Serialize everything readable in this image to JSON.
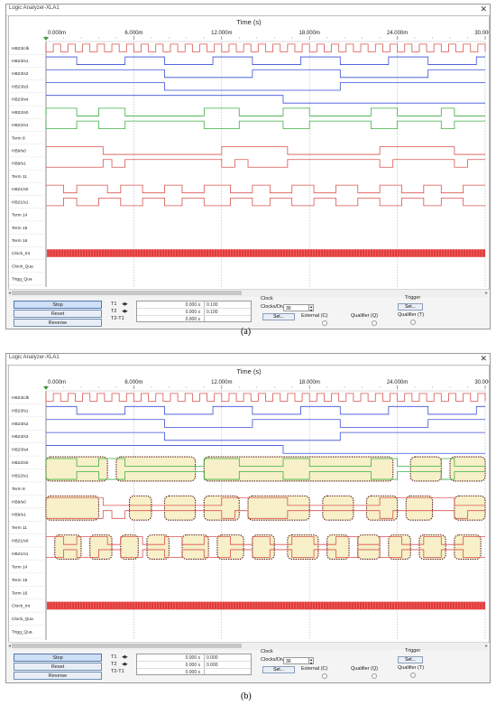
{
  "window_title": "Logic Analyzer-XLA1",
  "close_glyph": "✕",
  "axis": {
    "title": "Time (s)",
    "ticks": [
      "0.000m",
      "6.000m",
      "12.000m",
      "18.000m",
      "24.000m",
      "30.000m"
    ]
  },
  "channels": [
    "HB23/clk",
    "HB23/s1",
    "HB23/s2",
    "HB23/s3",
    "HB23/s4",
    "HB22/s0",
    "HB22/s1",
    "Term 8",
    "HB9/s0",
    "HB9/s1",
    "Term 11",
    "HB21/s0",
    "HB21/s1",
    "Term 14",
    "Term 15",
    "Term 16",
    "Clock_Int",
    "Clock_Qua",
    "Trigg_Qua"
  ],
  "colors": {
    "clk": "#d9534f",
    "blue": "#3b4fd6",
    "green": "#3cb043",
    "red": "#d9534f",
    "highlight_fill": "#f7f0c9",
    "highlight_border": "#5a1a1a",
    "clockint": "#e23a3a"
  },
  "controls": {
    "stop": "Stop",
    "reset": "Reset",
    "reverse": "Reverse",
    "t1": "T1",
    "t2": "T2",
    "t2t1": "T2-T1",
    "cursor_arrows": "◀▶",
    "a": {
      "t1_time": "0.000 s",
      "t2_time": "0.000 s",
      "t2t1_time": "0.000 s",
      "t1_val": "0.100",
      "t2_val": "0.100"
    },
    "b": {
      "t1_time": "0.000 s",
      "t2_time": "0.000 s",
      "t2t1_time": "0.000 s",
      "t1_val": "0.000",
      "t2_val": "0.000"
    },
    "clock": "Clock",
    "clocks_div": "Clocks/Div",
    "clocks_div_value": "30",
    "set": "Set...",
    "external": "External (C)",
    "qualifier_q": "Qualifier (Q)",
    "trigger": "Trigger",
    "qualifier_t": "Qualifier (T)"
  },
  "captions": {
    "a": "(a)",
    "b": "(b)"
  }
}
